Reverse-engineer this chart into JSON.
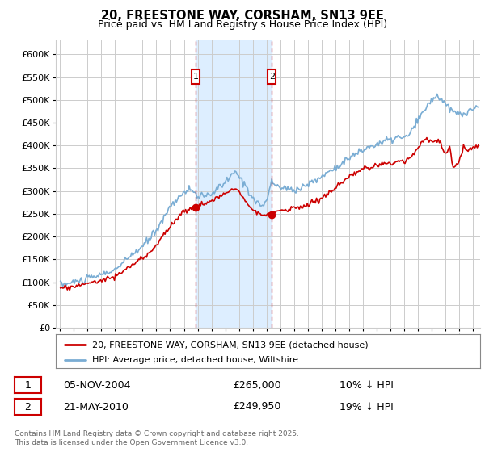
{
  "title": "20, FREESTONE WAY, CORSHAM, SN13 9EE",
  "subtitle": "Price paid vs. HM Land Registry's House Price Index (HPI)",
  "footer": "Contains HM Land Registry data © Crown copyright and database right 2025.\nThis data is licensed under the Open Government Licence v3.0.",
  "legend_line1": "20, FREESTONE WAY, CORSHAM, SN13 9EE (detached house)",
  "legend_line2": "HPI: Average price, detached house, Wiltshire",
  "annotation1_label": "1",
  "annotation1_date": "05-NOV-2004",
  "annotation1_price": "£265,000",
  "annotation1_hpi": "10% ↓ HPI",
  "annotation2_label": "2",
  "annotation2_date": "21-MAY-2010",
  "annotation2_price": "£249,950",
  "annotation2_hpi": "19% ↓ HPI",
  "red_color": "#cc0000",
  "blue_color": "#7aadd4",
  "shade_color": "#ddeeff",
  "annotation_box_color": "#cc0000",
  "grid_color": "#cccccc",
  "bg_color": "#ffffff",
  "ylim": [
    0,
    630000
  ],
  "ytick_step": 50000,
  "sale1_x": 2004.85,
  "sale1_y": 265000,
  "sale2_x": 2010.38,
  "sale2_y": 249950,
  "xmin": 1994.7,
  "xmax": 2025.5
}
